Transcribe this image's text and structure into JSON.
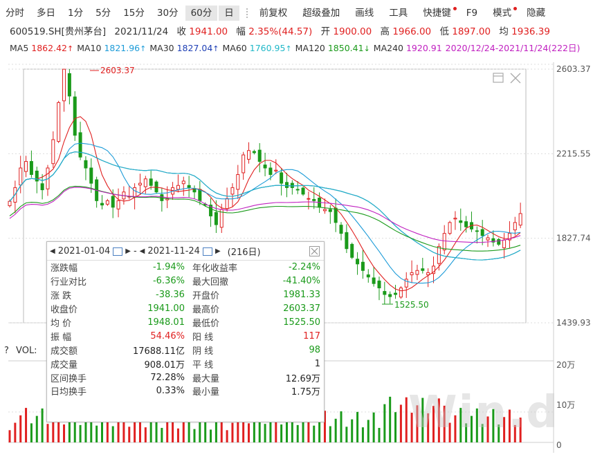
{
  "toolbar": {
    "items": [
      {
        "label": "分时",
        "selected": false
      },
      {
        "label": "多日",
        "selected": false
      },
      {
        "label": "1分",
        "selected": false
      },
      {
        "label": "5分",
        "selected": false
      },
      {
        "label": "15分",
        "selected": false
      },
      {
        "label": "30分",
        "selected": false
      },
      {
        "label": "60分",
        "selected": true
      },
      {
        "label": "日",
        "selected": true
      }
    ],
    "items2": [
      {
        "label": "前复权"
      },
      {
        "label": "超级叠加"
      },
      {
        "label": "画线"
      },
      {
        "label": "工具"
      },
      {
        "label": "快捷键"
      },
      {
        "label": "F9"
      },
      {
        "label": "模式"
      },
      {
        "label": "隐藏"
      }
    ],
    "dot_color": "#e02020"
  },
  "quote": {
    "code_name": "600519.SH[贵州茅台]",
    "date": "2021/11/24",
    "close_label": "收",
    "close": "1941.00",
    "amp_label": "幅",
    "amp": "2.35%(44.57)",
    "open_label": "开",
    "open": "1900.00",
    "high_label": "高",
    "high": "1966.00",
    "low_label": "低",
    "low": "1897.00",
    "avg_label": "均",
    "avg": "1936.39"
  },
  "ma": [
    {
      "label": "MA5",
      "value": "1862.42",
      "dir": "↑",
      "color": "#e02020"
    },
    {
      "label": "MA10",
      "value": "1821.96",
      "dir": "↑",
      "color": "#1c9bd8"
    },
    {
      "label": "MA30",
      "value": "1827.04",
      "dir": "↑",
      "color": "#1e3fb5"
    },
    {
      "label": "MA60",
      "value": "1760.95",
      "dir": "↑",
      "color": "#20b8c8"
    },
    {
      "label": "MA120",
      "value": "1850.41",
      "dir": "↓",
      "color": "#1a9a1a"
    },
    {
      "label": "MA240",
      "value": "1920.91",
      "dir": "",
      "color": "#c020c0"
    }
  ],
  "range_text": "2020/12/24-2021/11/24(222日)",
  "price_axis": {
    "ticks": [
      "2603.37",
      "2215.55",
      "1827.74",
      "1439.93"
    ],
    "ymax": 2603.37,
    "ymin": 1439.93
  },
  "annotations": {
    "high": "2603.37",
    "low": "1525.50"
  },
  "stats": {
    "start": "2021-01-04",
    "sep": "-",
    "end": "2021-11-24",
    "days": "(216日)",
    "rows": [
      {
        "l1": "涨跌幅",
        "v1": "-1.94%",
        "c1": "green",
        "l2": "年化收益率",
        "v2": "-2.24%",
        "c2": "green"
      },
      {
        "l1": "行业对比",
        "v1": "-6.36%",
        "c1": "green",
        "l2": "最大回撤",
        "v2": "-41.40%",
        "c2": "green"
      },
      {
        "l1": "涨 跌",
        "v1": "-38.36",
        "c1": "green",
        "l2": "开盘价",
        "v2": "1981.33",
        "c2": "green"
      },
      {
        "l1": "收盘价",
        "v1": "1941.00",
        "c1": "green",
        "l2": "最高价",
        "v2": "2603.37",
        "c2": "green"
      },
      {
        "l1": "均 价",
        "v1": "1948.01",
        "c1": "green",
        "l2": "最低价",
        "v2": "1525.50",
        "c2": "green"
      },
      {
        "l1": "振 幅",
        "v1": "54.46%",
        "c1": "red",
        "l2": "阳 线",
        "v2": "117",
        "c2": "red"
      },
      {
        "l1": "成交额",
        "v1": "17688.11亿",
        "c1": "blk",
        "l2": "阴 线",
        "v2": "98",
        "c2": "green"
      },
      {
        "l1": "成交量",
        "v1": "908.01万",
        "c1": "blk",
        "l2": "平 线",
        "v2": "1",
        "c2": "blk"
      },
      {
        "l1": "区间换手",
        "v1": "72.28%",
        "c1": "blk",
        "l2": "最大量",
        "v2": "12.69万",
        "c2": "blk"
      },
      {
        "l1": "日均换手",
        "v1": "0.33%",
        "c1": "blk",
        "l2": "最小量",
        "v2": "1.75万",
        "c2": "blk"
      }
    ]
  },
  "volume": {
    "label": "VOL:",
    "help": "?",
    "ticks": [
      "20万",
      "10万",
      "0"
    ]
  },
  "watermark": "Win.d",
  "chart_data": {
    "type": "candlestick",
    "title": "",
    "ylim": [
      1439.93,
      2603.37
    ],
    "x": [
      "2020-12-24",
      "2021-11-24"
    ],
    "series": [
      {
        "name": "MA5",
        "color": "#e02020"
      },
      {
        "name": "MA10",
        "color": "#1c9bd8"
      },
      {
        "name": "MA30",
        "color": "#1e3fb5"
      },
      {
        "name": "MA60",
        "color": "#20b8c8"
      },
      {
        "name": "MA120",
        "color": "#1a9a1a"
      },
      {
        "name": "MA240",
        "color": "#c020c0"
      }
    ],
    "closes": [
      1997,
      2060,
      2150,
      2180,
      2120,
      2090,
      2050,
      2150,
      2280,
      2450,
      2603,
      2480,
      2300,
      2200,
      2150,
      2080,
      2000,
      1980,
      2000,
      1970,
      2000,
      2040,
      2020,
      2060,
      2080,
      2100,
      2070,
      2040,
      2000,
      2010,
      2060,
      2070,
      2090,
      2060,
      2040,
      2000,
      1980,
      1930,
      1890,
      1960,
      2010,
      2060,
      2120,
      2210,
      2230,
      2220,
      2180,
      2150,
      2120,
      2140,
      2080,
      2060,
      2060,
      2050,
      2030,
      2010,
      2000,
      1970,
      1960,
      1950,
      1900,
      1850,
      1780,
      1740,
      1710,
      1680,
      1650,
      1620,
      1600,
      1570,
      1560,
      1570,
      1600,
      1640,
      1670,
      1680,
      1680,
      1670,
      1700,
      1790,
      1850,
      1900,
      1920,
      1900,
      1880,
      1870,
      1860,
      1840,
      1830,
      1810,
      1800,
      1820,
      1850,
      1900,
      1941
    ],
    "volume_ylim": [
      0,
      200000
    ]
  }
}
